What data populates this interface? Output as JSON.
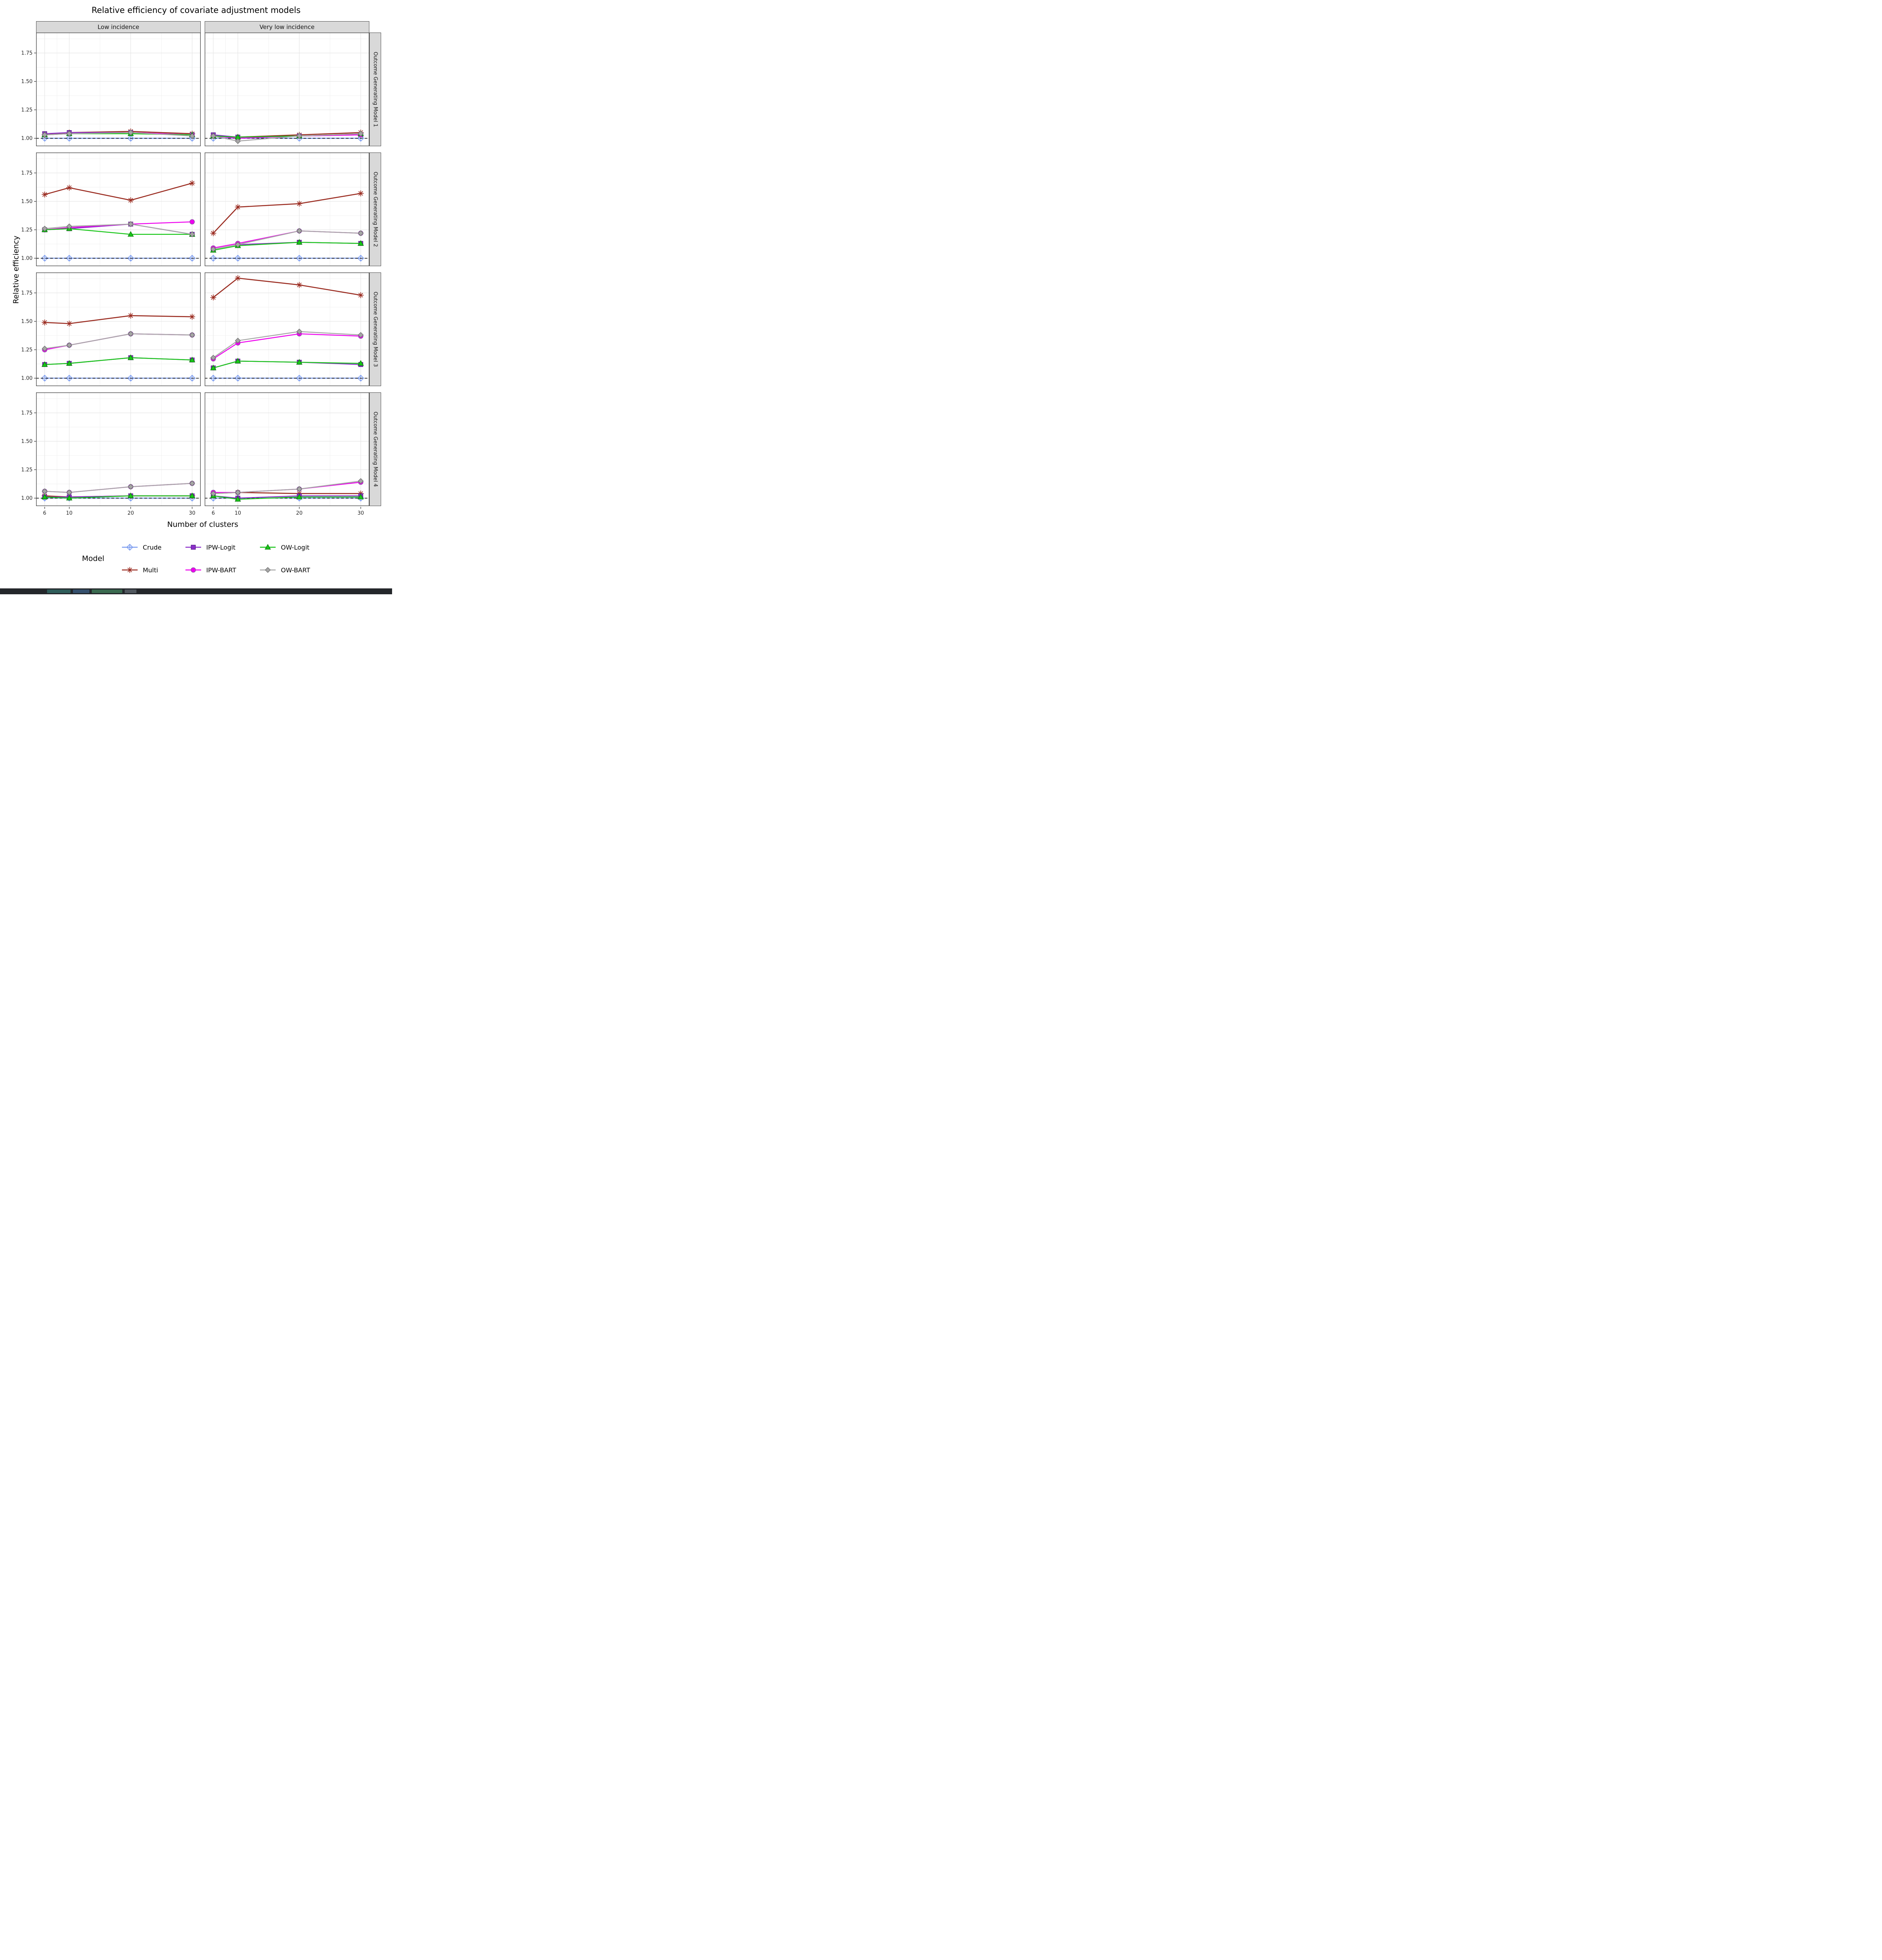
{
  "chart_data": {
    "type": "line",
    "title": "Relative efficiency of covariate adjustment models",
    "xlabel": "Number of clusters",
    "ylabel": "Relative efficiency",
    "x": [
      6,
      10,
      20,
      30
    ],
    "xticks": [
      6,
      10,
      20,
      30
    ],
    "xtick_labels": [
      "6",
      "10",
      "20",
      "30"
    ],
    "yticks": [
      1.0,
      1.25,
      1.5,
      1.75
    ],
    "ytick_labels": [
      "1.00",
      "1.25",
      "1.50",
      "1.75"
    ],
    "x_minor": [
      8,
      15,
      25
    ],
    "y_minor": [
      1.125,
      1.375,
      1.625,
      1.875
    ],
    "xlim": [
      4.6,
      31.4
    ],
    "ylim": [
      0.93,
      1.93
    ],
    "grid": true,
    "legend_position": "bottom",
    "col_facets": [
      "Low incidence",
      "Very low incidence"
    ],
    "row_facets": [
      "Outcome Generating Model 1",
      "Outcome Generating Model 2",
      "Outcome Generating Model 3",
      "Outcome Generating Model 4"
    ],
    "reference_line": {
      "y": 1.0,
      "style": "dashed",
      "color": "#000000"
    },
    "draw_order": [
      "crude",
      "multi",
      "ipw_logit",
      "ipw_bart",
      "ow_logit",
      "ow_bart"
    ],
    "series_meta": {
      "crude": {
        "label": "Crude",
        "color": "#7B9CF0",
        "marker": "diamond-plus",
        "marker_stroke": "#7B9CF0"
      },
      "multi": {
        "label": "Multi",
        "color": "#9A2B20",
        "marker": "asterisk",
        "marker_stroke": "#9A2B20"
      },
      "ipw_logit": {
        "label": "IPW-Logit",
        "color": "#8B2FC9",
        "marker": "square",
        "marker_stroke": "#5A1E8A"
      },
      "ipw_bart": {
        "label": "IPW-BART",
        "color": "#EE00EE",
        "marker": "circle",
        "marker_stroke": "#8E5BA8"
      },
      "ow_logit": {
        "label": "OW-Logit",
        "color": "#18C618",
        "marker": "triangle",
        "marker_stroke": "#0B7A0B"
      },
      "ow_bart": {
        "label": "OW-BART",
        "color": "#A6A6A6",
        "marker": "diamond",
        "marker_stroke": "#6E6E6E"
      }
    },
    "panels": [
      {
        "facet_col": "Low incidence",
        "facet_row": "Outcome Generating Model 1",
        "series": {
          "crude": [
            1.0,
            1.0,
            1.0,
            1.0
          ],
          "multi": [
            1.03,
            1.05,
            1.06,
            1.04
          ],
          "ipw_logit": [
            1.04,
            1.05,
            1.05,
            1.03
          ],
          "ipw_bart": [
            1.03,
            1.04,
            1.05,
            1.03
          ],
          "ow_logit": [
            1.03,
            1.04,
            1.04,
            1.03
          ],
          "ow_bart": [
            1.03,
            1.04,
            1.05,
            1.02
          ]
        }
      },
      {
        "facet_col": "Very low incidence",
        "facet_row": "Outcome Generating Model 1",
        "series": {
          "crude": [
            1.0,
            1.0,
            1.0,
            1.0
          ],
          "multi": [
            1.02,
            1.01,
            1.03,
            1.05
          ],
          "ipw_logit": [
            1.03,
            1.01,
            1.02,
            1.03
          ],
          "ipw_bart": [
            1.02,
            1.0,
            1.02,
            1.03
          ],
          "ow_logit": [
            1.02,
            1.01,
            1.02,
            1.04
          ],
          "ow_bart": [
            1.02,
            0.975,
            1.02,
            1.04
          ]
        }
      },
      {
        "facet_col": "Low incidence",
        "facet_row": "Outcome Generating Model 2",
        "series": {
          "crude": [
            1.0,
            1.0,
            1.0,
            1.0
          ],
          "multi": [
            1.56,
            1.62,
            1.51,
            1.66
          ],
          "ipw_logit": [
            1.25,
            1.26,
            1.3,
            1.21
          ],
          "ipw_bart": [
            1.25,
            1.27,
            1.3,
            1.32
          ],
          "ow_logit": [
            1.25,
            1.26,
            1.21,
            1.21
          ],
          "ow_bart": [
            1.26,
            1.28,
            1.3,
            1.21
          ]
        }
      },
      {
        "facet_col": "Very low incidence",
        "facet_row": "Outcome Generating Model 2",
        "series": {
          "crude": [
            1.0,
            1.0,
            1.0,
            1.0
          ],
          "multi": [
            1.22,
            1.45,
            1.48,
            1.57
          ],
          "ipw_logit": [
            1.08,
            1.12,
            1.14,
            1.13
          ],
          "ipw_bart": [
            1.09,
            1.13,
            1.24,
            1.22
          ],
          "ow_logit": [
            1.07,
            1.11,
            1.14,
            1.13
          ],
          "ow_bart": [
            1.08,
            1.12,
            1.24,
            1.22
          ]
        }
      },
      {
        "facet_col": "Low incidence",
        "facet_row": "Outcome Generating Model 3",
        "series": {
          "crude": [
            1.0,
            1.0,
            1.0,
            1.0
          ],
          "multi": [
            1.49,
            1.48,
            1.55,
            1.54
          ],
          "ipw_logit": [
            1.12,
            1.13,
            1.18,
            1.16
          ],
          "ipw_bart": [
            1.25,
            1.29,
            1.39,
            1.38
          ],
          "ow_logit": [
            1.12,
            1.13,
            1.18,
            1.16
          ],
          "ow_bart": [
            1.26,
            1.29,
            1.39,
            1.38
          ]
        }
      },
      {
        "facet_col": "Very low incidence",
        "facet_row": "Outcome Generating Model 3",
        "series": {
          "crude": [
            1.0,
            1.0,
            1.0,
            1.0
          ],
          "multi": [
            1.71,
            1.88,
            1.82,
            1.73
          ],
          "ipw_logit": [
            1.09,
            1.15,
            1.14,
            1.12
          ],
          "ipw_bart": [
            1.17,
            1.31,
            1.39,
            1.37
          ],
          "ow_logit": [
            1.09,
            1.15,
            1.14,
            1.13
          ],
          "ow_bart": [
            1.18,
            1.33,
            1.41,
            1.38
          ]
        }
      },
      {
        "facet_col": "Low incidence",
        "facet_row": "Outcome Generating Model 4",
        "series": {
          "crude": [
            1.0,
            1.0,
            1.0,
            1.0
          ],
          "multi": [
            1.02,
            1.01,
            1.02,
            1.02
          ],
          "ipw_logit": [
            1.01,
            1.01,
            1.02,
            1.02
          ],
          "ipw_bart": [
            1.06,
            1.05,
            1.1,
            1.13
          ],
          "ow_logit": [
            1.01,
            1.0,
            1.02,
            1.02
          ],
          "ow_bart": [
            1.06,
            1.05,
            1.1,
            1.13
          ]
        }
      },
      {
        "facet_col": "Very low incidence",
        "facet_row": "Outcome Generating Model 4",
        "series": {
          "crude": [
            1.0,
            1.0,
            1.0,
            1.0
          ],
          "multi": [
            1.04,
            1.05,
            1.04,
            1.04
          ],
          "ipw_logit": [
            1.02,
            1.0,
            1.02,
            1.02
          ],
          "ipw_bart": [
            1.05,
            1.05,
            1.08,
            1.14
          ],
          "ow_logit": [
            1.02,
            0.99,
            1.01,
            1.01
          ],
          "ow_bart": [
            1.04,
            1.05,
            1.08,
            1.15
          ]
        }
      }
    ]
  },
  "legend": {
    "title": "Model",
    "entries": [
      {
        "key": "crude",
        "label": "Crude"
      },
      {
        "key": "ipw_logit",
        "label": "IPW-Logit"
      },
      {
        "key": "ow_logit",
        "label": "OW-Logit"
      },
      {
        "key": "multi",
        "label": "Multi"
      },
      {
        "key": "ipw_bart",
        "label": "IPW-BART"
      },
      {
        "key": "ow_bart",
        "label": "OW-BART"
      }
    ]
  }
}
